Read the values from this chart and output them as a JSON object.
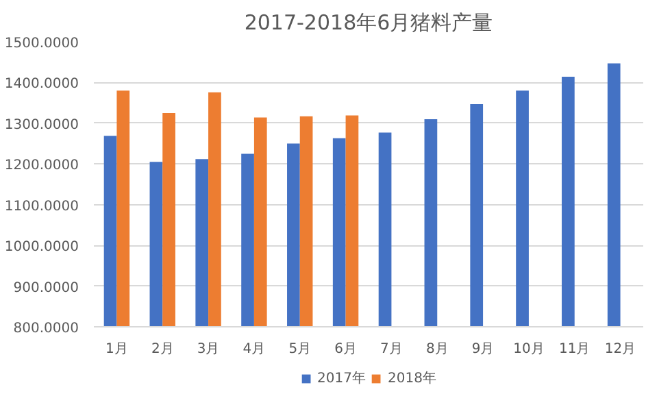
{
  "chart_data": {
    "type": "bar",
    "title": "2017-2018年6月猪料产量",
    "categories": [
      "1月",
      "2月",
      "3月",
      "4月",
      "5月",
      "6月",
      "7月",
      "8月",
      "9月",
      "10月",
      "11月",
      "12月"
    ],
    "series": [
      {
        "name": "2017年",
        "color": "#4472c4",
        "values": [
          1269,
          1205,
          1212,
          1225,
          1250,
          1263,
          1277,
          1310,
          1347,
          1380,
          1414,
          1447
        ]
      },
      {
        "name": "2018年",
        "color": "#ed7d31",
        "values": [
          1380,
          1325,
          1376,
          1314,
          1317,
          1319,
          null,
          null,
          null,
          null,
          null,
          null
        ]
      }
    ],
    "ylim": [
      800,
      1500
    ],
    "yticks": [
      {
        "value": 800,
        "label": "800.0000"
      },
      {
        "value": 900,
        "label": "900.0000"
      },
      {
        "value": 1000,
        "label": "1000.0000"
      },
      {
        "value": 1100,
        "label": "1100.0000"
      },
      {
        "value": 1200,
        "label": "1200.0000"
      },
      {
        "value": 1300,
        "label": "1300.0000"
      },
      {
        "value": 1400,
        "label": "1400.0000"
      },
      {
        "value": 1500,
        "label": "1500.0000"
      }
    ],
    "grid": "y",
    "legend": "bottom"
  }
}
